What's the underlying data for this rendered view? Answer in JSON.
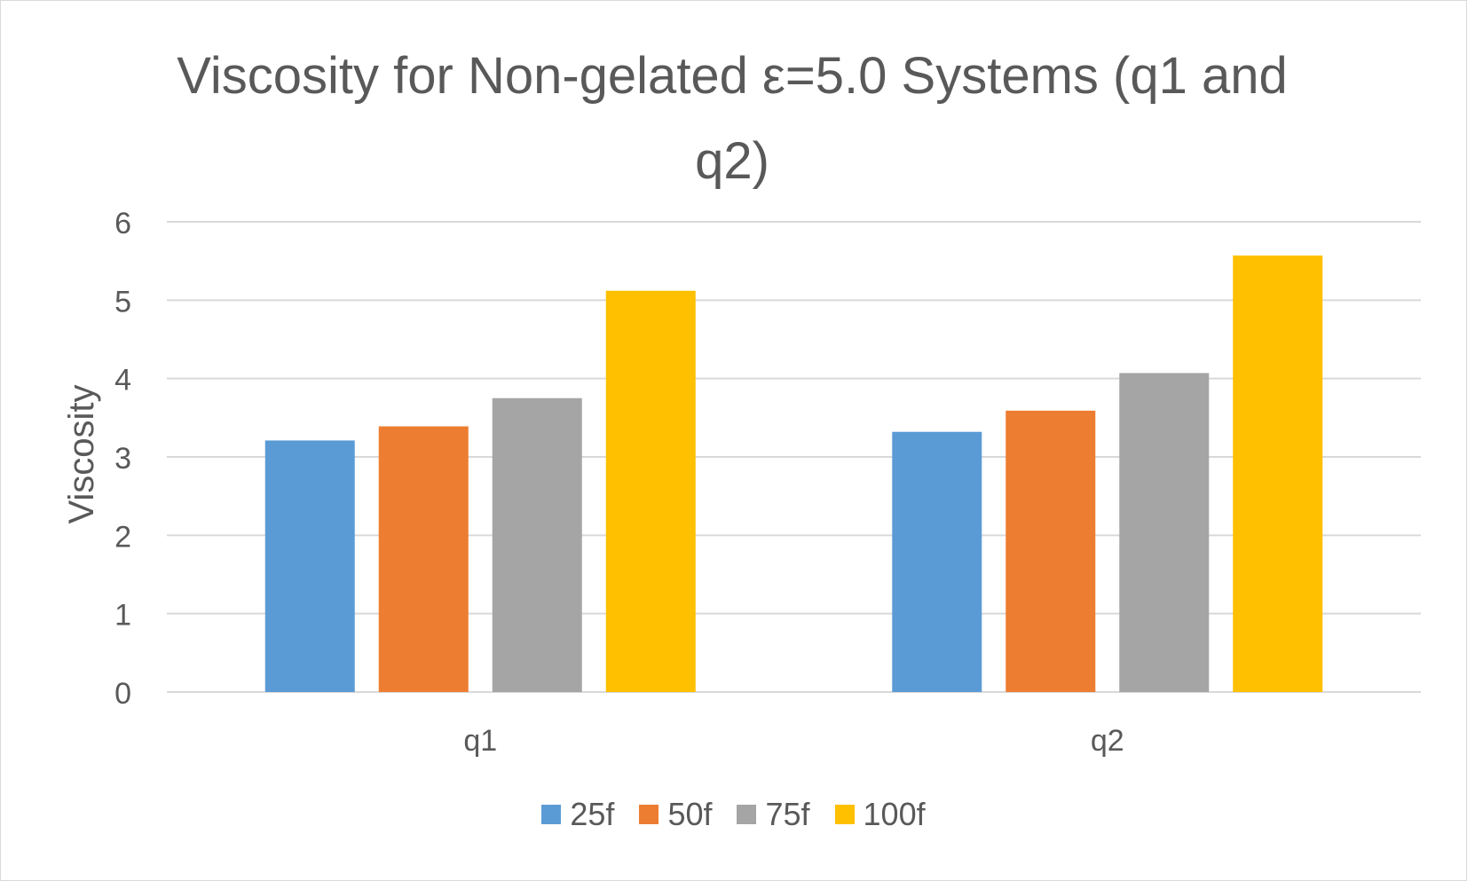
{
  "chart_data": {
    "type": "bar",
    "title": "Viscosity for Non-gelated ε=5.0 Systems (q1 and q2)",
    "xlabel": "",
    "ylabel": "Viscosity",
    "categories": [
      "q1",
      "q2"
    ],
    "series": [
      {
        "name": "25f",
        "color": "#5b9bd5",
        "values": [
          3.21,
          3.32
        ]
      },
      {
        "name": "50f",
        "color": "#ed7d31",
        "values": [
          3.39,
          3.59
        ]
      },
      {
        "name": "75f",
        "color": "#a5a5a5",
        "values": [
          3.75,
          4.07
        ]
      },
      {
        "name": "100f",
        "color": "#ffc000",
        "values": [
          5.12,
          5.57
        ]
      }
    ],
    "ylim": [
      0,
      6
    ],
    "yticks": [
      0,
      1,
      2,
      3,
      4,
      5,
      6
    ],
    "grid": true,
    "legend_position": "bottom"
  }
}
